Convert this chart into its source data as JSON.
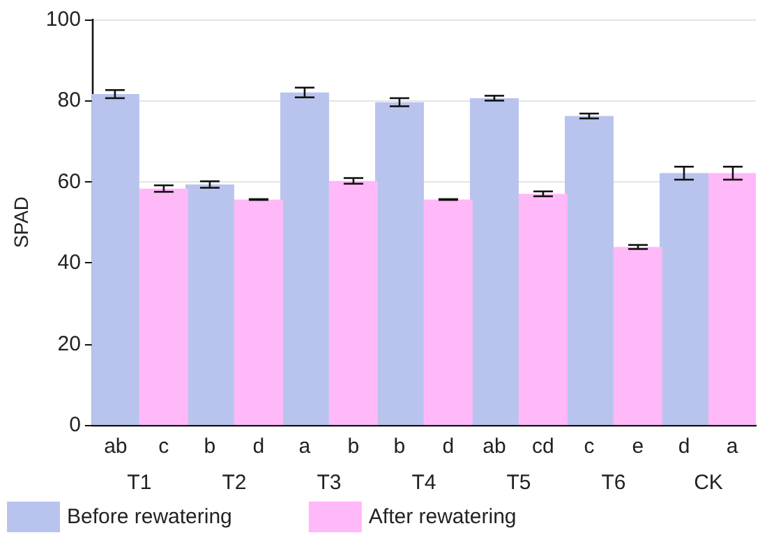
{
  "chart_data": {
    "type": "bar",
    "ylabel": "SPAD",
    "categories": [
      "T1",
      "T2",
      "T3",
      "T4",
      "T5",
      "T6",
      "CK"
    ],
    "series": [
      {
        "name": "Before rewatering",
        "color": "#b8c4ee",
        "values": [
          81.6,
          59.3,
          82.0,
          79.6,
          80.6,
          76.2,
          62.1
        ],
        "errors": [
          1.0,
          0.8,
          1.2,
          1.0,
          0.6,
          0.6,
          1.6
        ],
        "value_labels": [
          "ab",
          "b",
          "a",
          "b",
          "ab",
          "c",
          "d"
        ]
      },
      {
        "name": "After rewatering",
        "color": "#ffb8f8",
        "values": [
          58.3,
          55.6,
          60.2,
          55.6,
          57.0,
          43.9,
          62.1
        ],
        "errors": [
          0.8,
          0.1,
          0.7,
          0.1,
          0.6,
          0.5,
          1.6
        ],
        "value_labels": [
          "c",
          "d",
          "b",
          "d",
          "cd",
          "e",
          "a"
        ]
      }
    ],
    "ylim": [
      0,
      100
    ],
    "yticks": [
      0,
      20,
      40,
      60,
      80,
      100
    ],
    "grid": "y",
    "legend": "bottom"
  }
}
